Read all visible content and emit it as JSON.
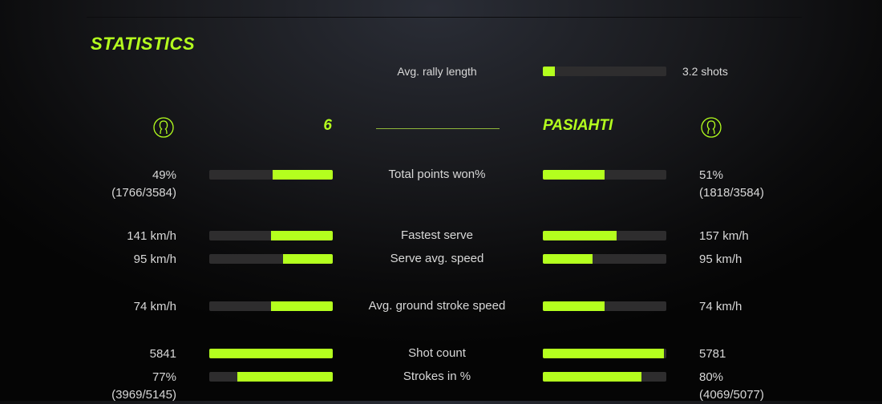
{
  "section_title": "STATISTICS",
  "accent_color": "#b4ff1e",
  "rally": {
    "label": "Avg. rally length",
    "value": "3.2 shots",
    "fill": 0.1
  },
  "players": {
    "left": {
      "name": "6",
      "icon": "user-icon"
    },
    "right": {
      "name": "PASIAHTI",
      "icon": "user-icon"
    }
  },
  "stats": [
    {
      "label": "Total points won%",
      "left": "49%",
      "left_sub": "(1766/3584)",
      "left_fill": 0.49,
      "right": "51%",
      "right_sub": "(1818/3584)",
      "right_fill": 0.5
    },
    {
      "label": "Fastest serve",
      "left": "141 km/h",
      "left_fill": 0.5,
      "right": "157 km/h",
      "right_fill": 0.6
    },
    {
      "label": "Serve avg. speed",
      "left": "95 km/h",
      "left_fill": 0.4,
      "right": "95 km/h",
      "right_fill": 0.4
    },
    {
      "label": "Avg. ground stroke speed",
      "left": "74 km/h",
      "left_fill": 0.5,
      "right": "74 km/h",
      "right_fill": 0.5
    },
    {
      "label": "Shot count",
      "left": "5841",
      "left_fill": 1.0,
      "right": "5781",
      "right_fill": 0.98
    },
    {
      "label": "Strokes in %",
      "left": "77%",
      "left_sub": "(3969/5145)",
      "left_fill": 0.77,
      "right": "80%",
      "right_sub": "(4069/5077)",
      "right_fill": 0.8
    }
  ]
}
